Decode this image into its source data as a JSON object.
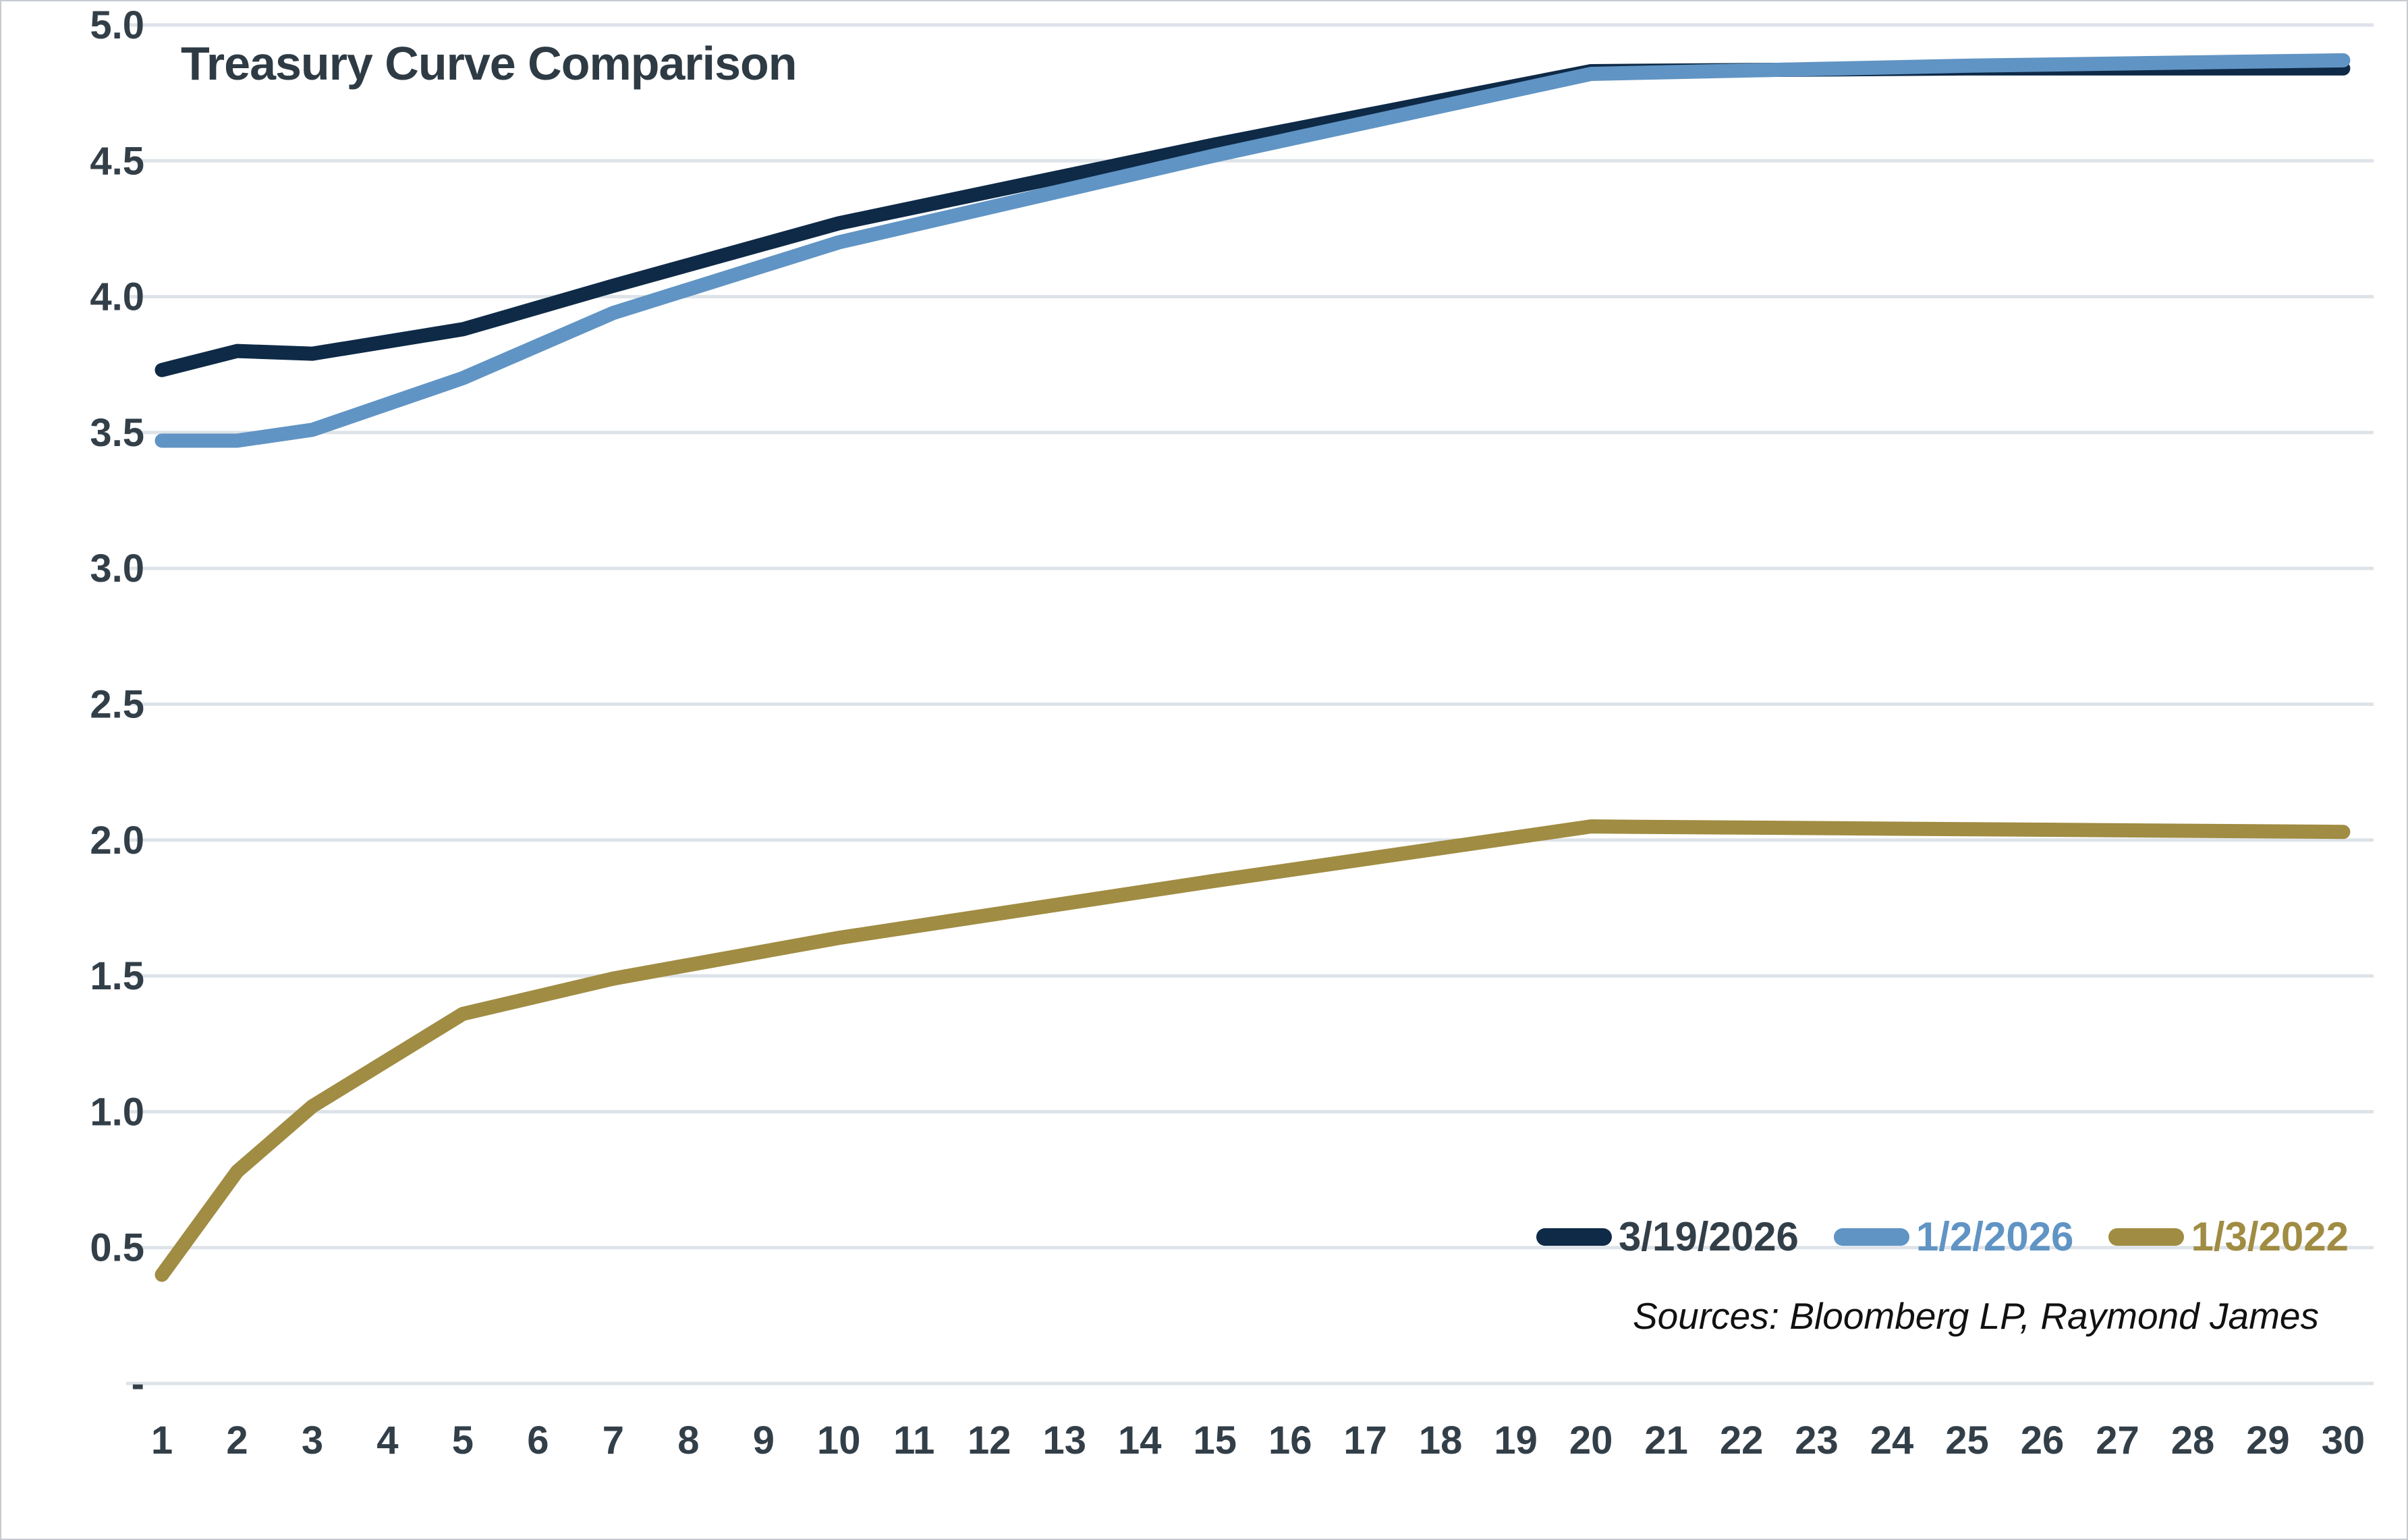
{
  "title": "Treasury Curve Comparison",
  "source_note": "Sources: Bloomberg LP, Raymond James",
  "colors": {
    "background": "#ffffff",
    "gridline": "#dde3e8",
    "axis_text": "#333f48",
    "title_text": "#2e3b44",
    "navy_line": "#0e2a47",
    "blue_line": "#6094c4",
    "gold_line": "#a08c42"
  },
  "legend": {
    "items": [
      {
        "label": "3/19/2026",
        "marker_color": "#0e2a47",
        "label_color": "#333f48"
      },
      {
        "label": "1/2/2026",
        "marker_color": "#6094c4",
        "label_color": "#6094c4"
      },
      {
        "label": "1/3/2022",
        "marker_color": "#a08c42",
        "label_color": "#a08c42"
      }
    ]
  },
  "chart_data": {
    "type": "line",
    "title": "Treasury Curve Comparison",
    "xlabel": "",
    "ylabel": "",
    "xlim": [
      1,
      30
    ],
    "ylim": [
      0,
      5
    ],
    "grid": true,
    "legend_position": "bottom-right",
    "x_tick_labels": [
      "1",
      "2",
      "3",
      "4",
      "5",
      "6",
      "7",
      "8",
      "9",
      "10",
      "11",
      "12",
      "13",
      "14",
      "15",
      "16",
      "17",
      "18",
      "19",
      "20",
      "21",
      "22",
      "23",
      "24",
      "25",
      "26",
      "27",
      "28",
      "29",
      "30"
    ],
    "y_ticks": [
      {
        "value": 5.0,
        "label": "5.0"
      },
      {
        "value": 4.5,
        "label": "4.5"
      },
      {
        "value": 4.0,
        "label": "4.0"
      },
      {
        "value": 3.5,
        "label": "3.5"
      },
      {
        "value": 3.0,
        "label": "3.0"
      },
      {
        "value": 2.5,
        "label": "2.5"
      },
      {
        "value": 2.0,
        "label": "2.0"
      },
      {
        "value": 1.5,
        "label": "1.5"
      },
      {
        "value": 1.0,
        "label": "1.0"
      },
      {
        "value": 0.5,
        "label": "0.5"
      },
      {
        "value": 0.0,
        "label": "-"
      }
    ],
    "series": [
      {
        "name": "3/19/2026",
        "color": "#0e2a47",
        "x": [
          1,
          2,
          3,
          5,
          7,
          10,
          15,
          20,
          25,
          30
        ],
        "values": [
          3.73,
          3.8,
          3.79,
          3.88,
          4.04,
          4.27,
          4.56,
          4.83,
          4.84,
          4.84
        ]
      },
      {
        "name": "1/2/2026",
        "color": "#6094c4",
        "x": [
          1,
          2,
          3,
          5,
          7,
          10,
          15,
          20,
          25,
          30
        ],
        "values": [
          3.47,
          3.47,
          3.51,
          3.7,
          3.94,
          4.2,
          4.52,
          4.82,
          4.85,
          4.87
        ]
      },
      {
        "name": "1/3/2022",
        "color": "#a08c42",
        "x": [
          1,
          2,
          3,
          5,
          7,
          10,
          15,
          20,
          25,
          30
        ],
        "values": [
          0.4,
          0.78,
          1.02,
          1.36,
          1.49,
          1.64,
          1.85,
          2.05,
          2.04,
          2.03
        ]
      }
    ]
  }
}
